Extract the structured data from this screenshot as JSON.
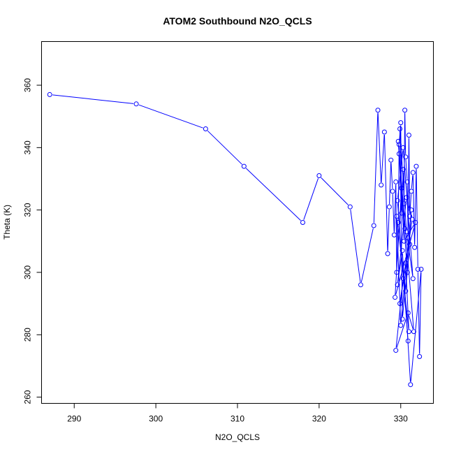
{
  "chart_data": {
    "type": "line",
    "title": "ATOM2 Southbound N2O_QCLS",
    "xlabel": "N2O_QCLS",
    "ylabel": "Theta (K)",
    "xlim": [
      286,
      334
    ],
    "ylim": [
      258,
      374
    ],
    "x_ticks": [
      290,
      300,
      310,
      320,
      330
    ],
    "y_ticks": [
      260,
      280,
      300,
      320,
      340,
      360
    ],
    "grid": false,
    "legend": "none",
    "series_color": "#0000ff",
    "marker": "open-circle",
    "series": [
      {
        "x": [
          287.0,
          297.6,
          306.1,
          310.8,
          318.0,
          320.0,
          323.8,
          325.1,
          326.7,
          327.2,
          327.6,
          328.0,
          328.4,
          328.6,
          328.8,
          329.0,
          329.2,
          329.4,
          329.5,
          329.7,
          329.8,
          330.0,
          330.1,
          330.3,
          330.4,
          330.5,
          330.6,
          330.8,
          330.9,
          331.0,
          331.1,
          331.3,
          331.5,
          331.7,
          331.9,
          332.1,
          332.3,
          332.5,
          331.2,
          330.2,
          329.6,
          330.7,
          331.4,
          329.9,
          330.6,
          331.0,
          330.3,
          329.4,
          330.9,
          331.6,
          329.8,
          330.5,
          330.1,
          329.3,
          331.8,
          330.4,
          329.7,
          330.8,
          331.3,
          330.0,
          329.5,
          330.6,
          331.1,
          330.2,
          329.9,
          330.7,
          331.5,
          330.3,
          329.6,
          330.9
        ],
        "y": [
          357,
          354,
          346,
          334,
          316,
          331,
          321,
          296,
          315,
          352,
          328,
          345,
          306,
          321,
          336,
          326,
          312,
          329,
          300,
          316,
          341,
          348,
          319,
          333,
          322,
          352,
          337,
          329,
          311,
          344,
          318,
          326,
          332,
          308,
          334,
          301,
          273,
          301,
          264,
          307,
          296,
          324,
          317,
          290,
          303,
          281,
          298,
          275,
          287,
          281,
          338,
          314,
          327,
          292,
          316,
          310,
          342,
          300,
          320,
          283,
          318,
          294,
          309,
          285,
          346,
          313,
          298,
          340,
          323,
          278
        ]
      }
    ]
  }
}
